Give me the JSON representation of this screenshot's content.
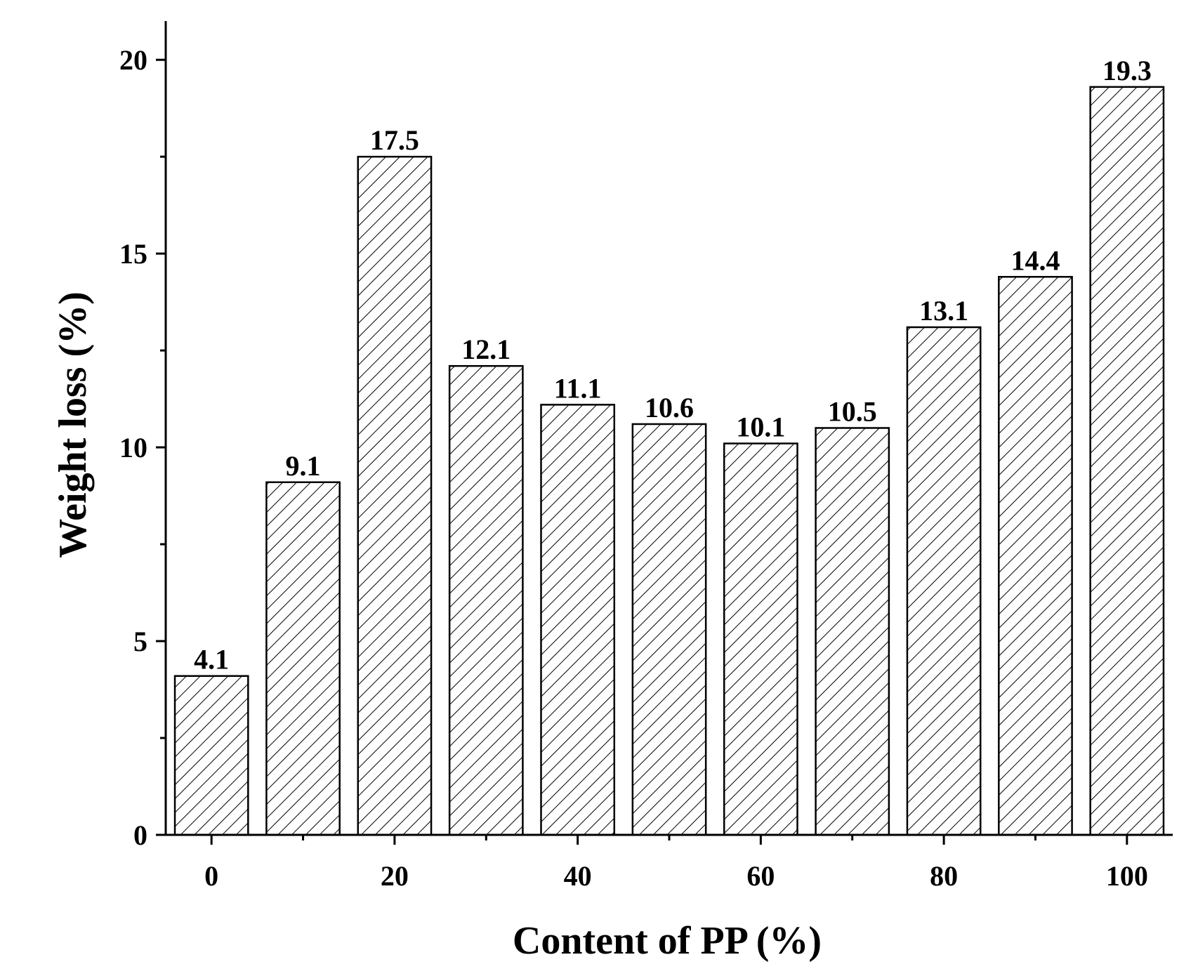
{
  "chart_data": {
    "type": "bar",
    "x": [
      0,
      10,
      20,
      30,
      40,
      50,
      60,
      70,
      80,
      90,
      100
    ],
    "values": [
      4.1,
      9.1,
      17.5,
      12.1,
      11.1,
      10.6,
      10.1,
      10.5,
      13.1,
      14.4,
      19.3
    ],
    "data_labels": [
      "4.1",
      "9.1",
      "17.5",
      "12.1",
      "11.1",
      "10.6",
      "10.1",
      "10.5",
      "13.1",
      "14.4",
      "19.3"
    ],
    "xlabel": "Content of PP (%)",
    "ylabel": "Weight loss (%)",
    "xlim": [
      -5,
      105
    ],
    "ylim": [
      0,
      21
    ],
    "xticks": [
      0,
      20,
      40,
      60,
      80,
      100
    ],
    "xtick_labels": [
      "0",
      "20",
      "40",
      "60",
      "80",
      "100"
    ],
    "yticks": [
      0,
      5,
      10,
      15,
      20
    ],
    "ytick_labels": [
      "0",
      "5",
      "10",
      "15",
      "20"
    ],
    "bar_fill": "diagonal-hatch",
    "bar_color": "#000000",
    "grid": false,
    "legend": "none"
  }
}
